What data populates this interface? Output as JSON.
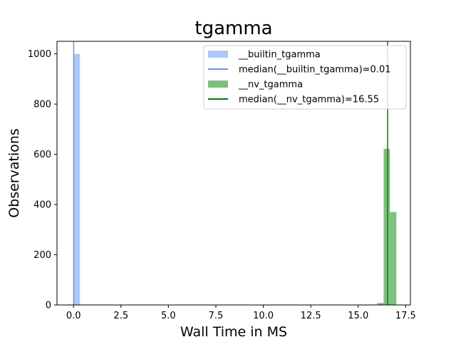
{
  "chart_data": {
    "type": "bar",
    "title": "tgamma",
    "xlabel": "Wall Time in MS",
    "ylabel": "Observations",
    "xlim": [
      -0.87,
      17.75
    ],
    "ylim": [
      0,
      1050
    ],
    "xticks": [
      0.0,
      2.5,
      5.0,
      7.5,
      10.0,
      12.5,
      15.0,
      17.5
    ],
    "xtick_labels": [
      "0.0",
      "2.5",
      "5.0",
      "7.5",
      "10.0",
      "12.5",
      "15.0",
      "17.5"
    ],
    "yticks": [
      0,
      200,
      400,
      600,
      800,
      1000
    ],
    "ytick_labels": [
      "0",
      "200",
      "400",
      "600",
      "800",
      "1000"
    ],
    "grid": false,
    "legend_position": "top-right",
    "series": [
      {
        "name": "__builtin_tgamma",
        "kind": "histogram",
        "color": "#aec7f5",
        "bins": [
          {
            "x0": 0.0,
            "x1": 0.34,
            "count": 1000
          }
        ]
      },
      {
        "name": "__nv_tgamma",
        "kind": "histogram",
        "color": "#7fbf7f",
        "bins": [
          {
            "x0": 16.0,
            "x1": 16.34,
            "count": 8
          },
          {
            "x0": 16.34,
            "x1": 16.67,
            "count": 622
          },
          {
            "x0": 16.67,
            "x1": 17.01,
            "count": 370
          }
        ]
      }
    ],
    "reference_lines": [
      {
        "name": "median(__builtin_tgamma)=0.01",
        "x": 0.01,
        "color": "#6495ed"
      },
      {
        "name": "median(__nv_tgamma)=16.55",
        "x": 16.55,
        "color": "#008000"
      }
    ]
  }
}
